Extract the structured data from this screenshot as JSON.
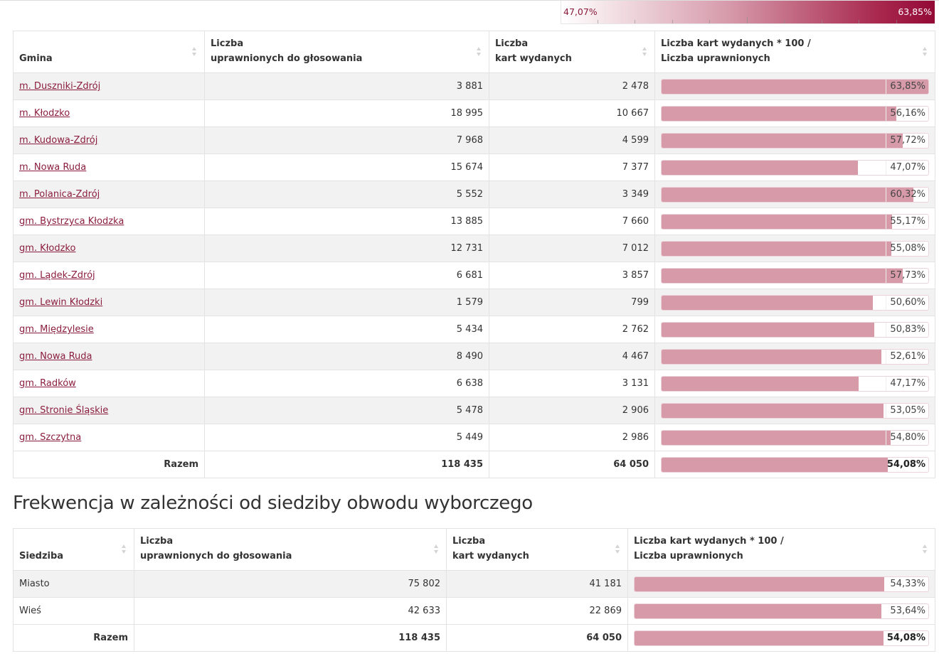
{
  "legend": {
    "min_label": "47,07%",
    "max_label": "63,85%",
    "min_value": 47.07,
    "max_value": 63.85,
    "color_low": "#ffffff",
    "color_high": "#930a35"
  },
  "table_gminy": {
    "headers": {
      "col1": "Gmina",
      "col2_line1": "Liczba",
      "col2_line2": "uprawnionych do głosowania",
      "col3_line1": "Liczba",
      "col3_line2": "kart wydanych",
      "col4_line1": "Liczba kart wydanych * 100 /",
      "col4_line2": "Liczba uprawnionych"
    },
    "rows": [
      {
        "name": "m. Duszniki-Zdrój",
        "uprawnieni": "3 881",
        "karty": "2 478",
        "frekwencja_label": "63,85%",
        "frekwencja": 63.85
      },
      {
        "name": "m. Kłodzko",
        "uprawnieni": "18 995",
        "karty": "10 667",
        "frekwencja_label": "56,16%",
        "frekwencja": 56.16
      },
      {
        "name": "m. Kudowa-Zdrój",
        "uprawnieni": "7 968",
        "karty": "4 599",
        "frekwencja_label": "57,72%",
        "frekwencja": 57.72
      },
      {
        "name": "m. Nowa Ruda",
        "uprawnieni": "15 674",
        "karty": "7 377",
        "frekwencja_label": "47,07%",
        "frekwencja": 47.07
      },
      {
        "name": "m. Polanica-Zdrój",
        "uprawnieni": "5 552",
        "karty": "3 349",
        "frekwencja_label": "60,32%",
        "frekwencja": 60.32
      },
      {
        "name": "gm. Bystrzyca Kłodzka",
        "uprawnieni": "13 885",
        "karty": "7 660",
        "frekwencja_label": "55,17%",
        "frekwencja": 55.17
      },
      {
        "name": "gm. Kłodzko",
        "uprawnieni": "12 731",
        "karty": "7 012",
        "frekwencja_label": "55,08%",
        "frekwencja": 55.08
      },
      {
        "name": "gm. Lądek-Zdrój",
        "uprawnieni": "6 681",
        "karty": "3 857",
        "frekwencja_label": "57,73%",
        "frekwencja": 57.73
      },
      {
        "name": "gm. Lewin Kłodzki",
        "uprawnieni": "1 579",
        "karty": "799",
        "frekwencja_label": "50,60%",
        "frekwencja": 50.6
      },
      {
        "name": "gm. Międzylesie",
        "uprawnieni": "5 434",
        "karty": "2 762",
        "frekwencja_label": "50,83%",
        "frekwencja": 50.83
      },
      {
        "name": "gm. Nowa Ruda",
        "uprawnieni": "8 490",
        "karty": "4 467",
        "frekwencja_label": "52,61%",
        "frekwencja": 52.61
      },
      {
        "name": "gm. Radków",
        "uprawnieni": "6 638",
        "karty": "3 131",
        "frekwencja_label": "47,17%",
        "frekwencja": 47.17
      },
      {
        "name": "gm. Stronie Śląskie",
        "uprawnieni": "5 478",
        "karty": "2 906",
        "frekwencja_label": "53,05%",
        "frekwencja": 53.05
      },
      {
        "name": "gm. Szczytna",
        "uprawnieni": "5 449",
        "karty": "2 986",
        "frekwencja_label": "54,80%",
        "frekwencja": 54.8
      }
    ],
    "total": {
      "name": "Razem",
      "uprawnieni": "118 435",
      "karty": "64 050",
      "frekwencja_label": "54,08%",
      "frekwencja": 54.08
    }
  },
  "section2_title": "Frekwencja w zależności od siedziby obwodu wyborczego",
  "table_siedziba": {
    "headers": {
      "col1": "Siedziba",
      "col2_line1": "Liczba",
      "col2_line2": "uprawnionych do głosowania",
      "col3_line1": "Liczba",
      "col3_line2": "kart wydanych",
      "col4_line1": "Liczba kart wydanych * 100 /",
      "col4_line2": "Liczba uprawnionych"
    },
    "rows": [
      {
        "name": "Miasto",
        "uprawnieni": "75 802",
        "karty": "41 181",
        "frekwencja_label": "54,33%",
        "frekwencja": 54.33
      },
      {
        "name": "Wieś",
        "uprawnieni": "42 633",
        "karty": "22 869",
        "frekwencja_label": "53,64%",
        "frekwencja": 53.64
      }
    ],
    "total": {
      "name": "Razem",
      "uprawnieni": "118 435",
      "karty": "64 050",
      "frekwencja_label": "54,08%",
      "frekwencja": 54.08
    }
  },
  "colors": {
    "link": "#8b1e3f",
    "bar_fill": "#d79aa9"
  }
}
